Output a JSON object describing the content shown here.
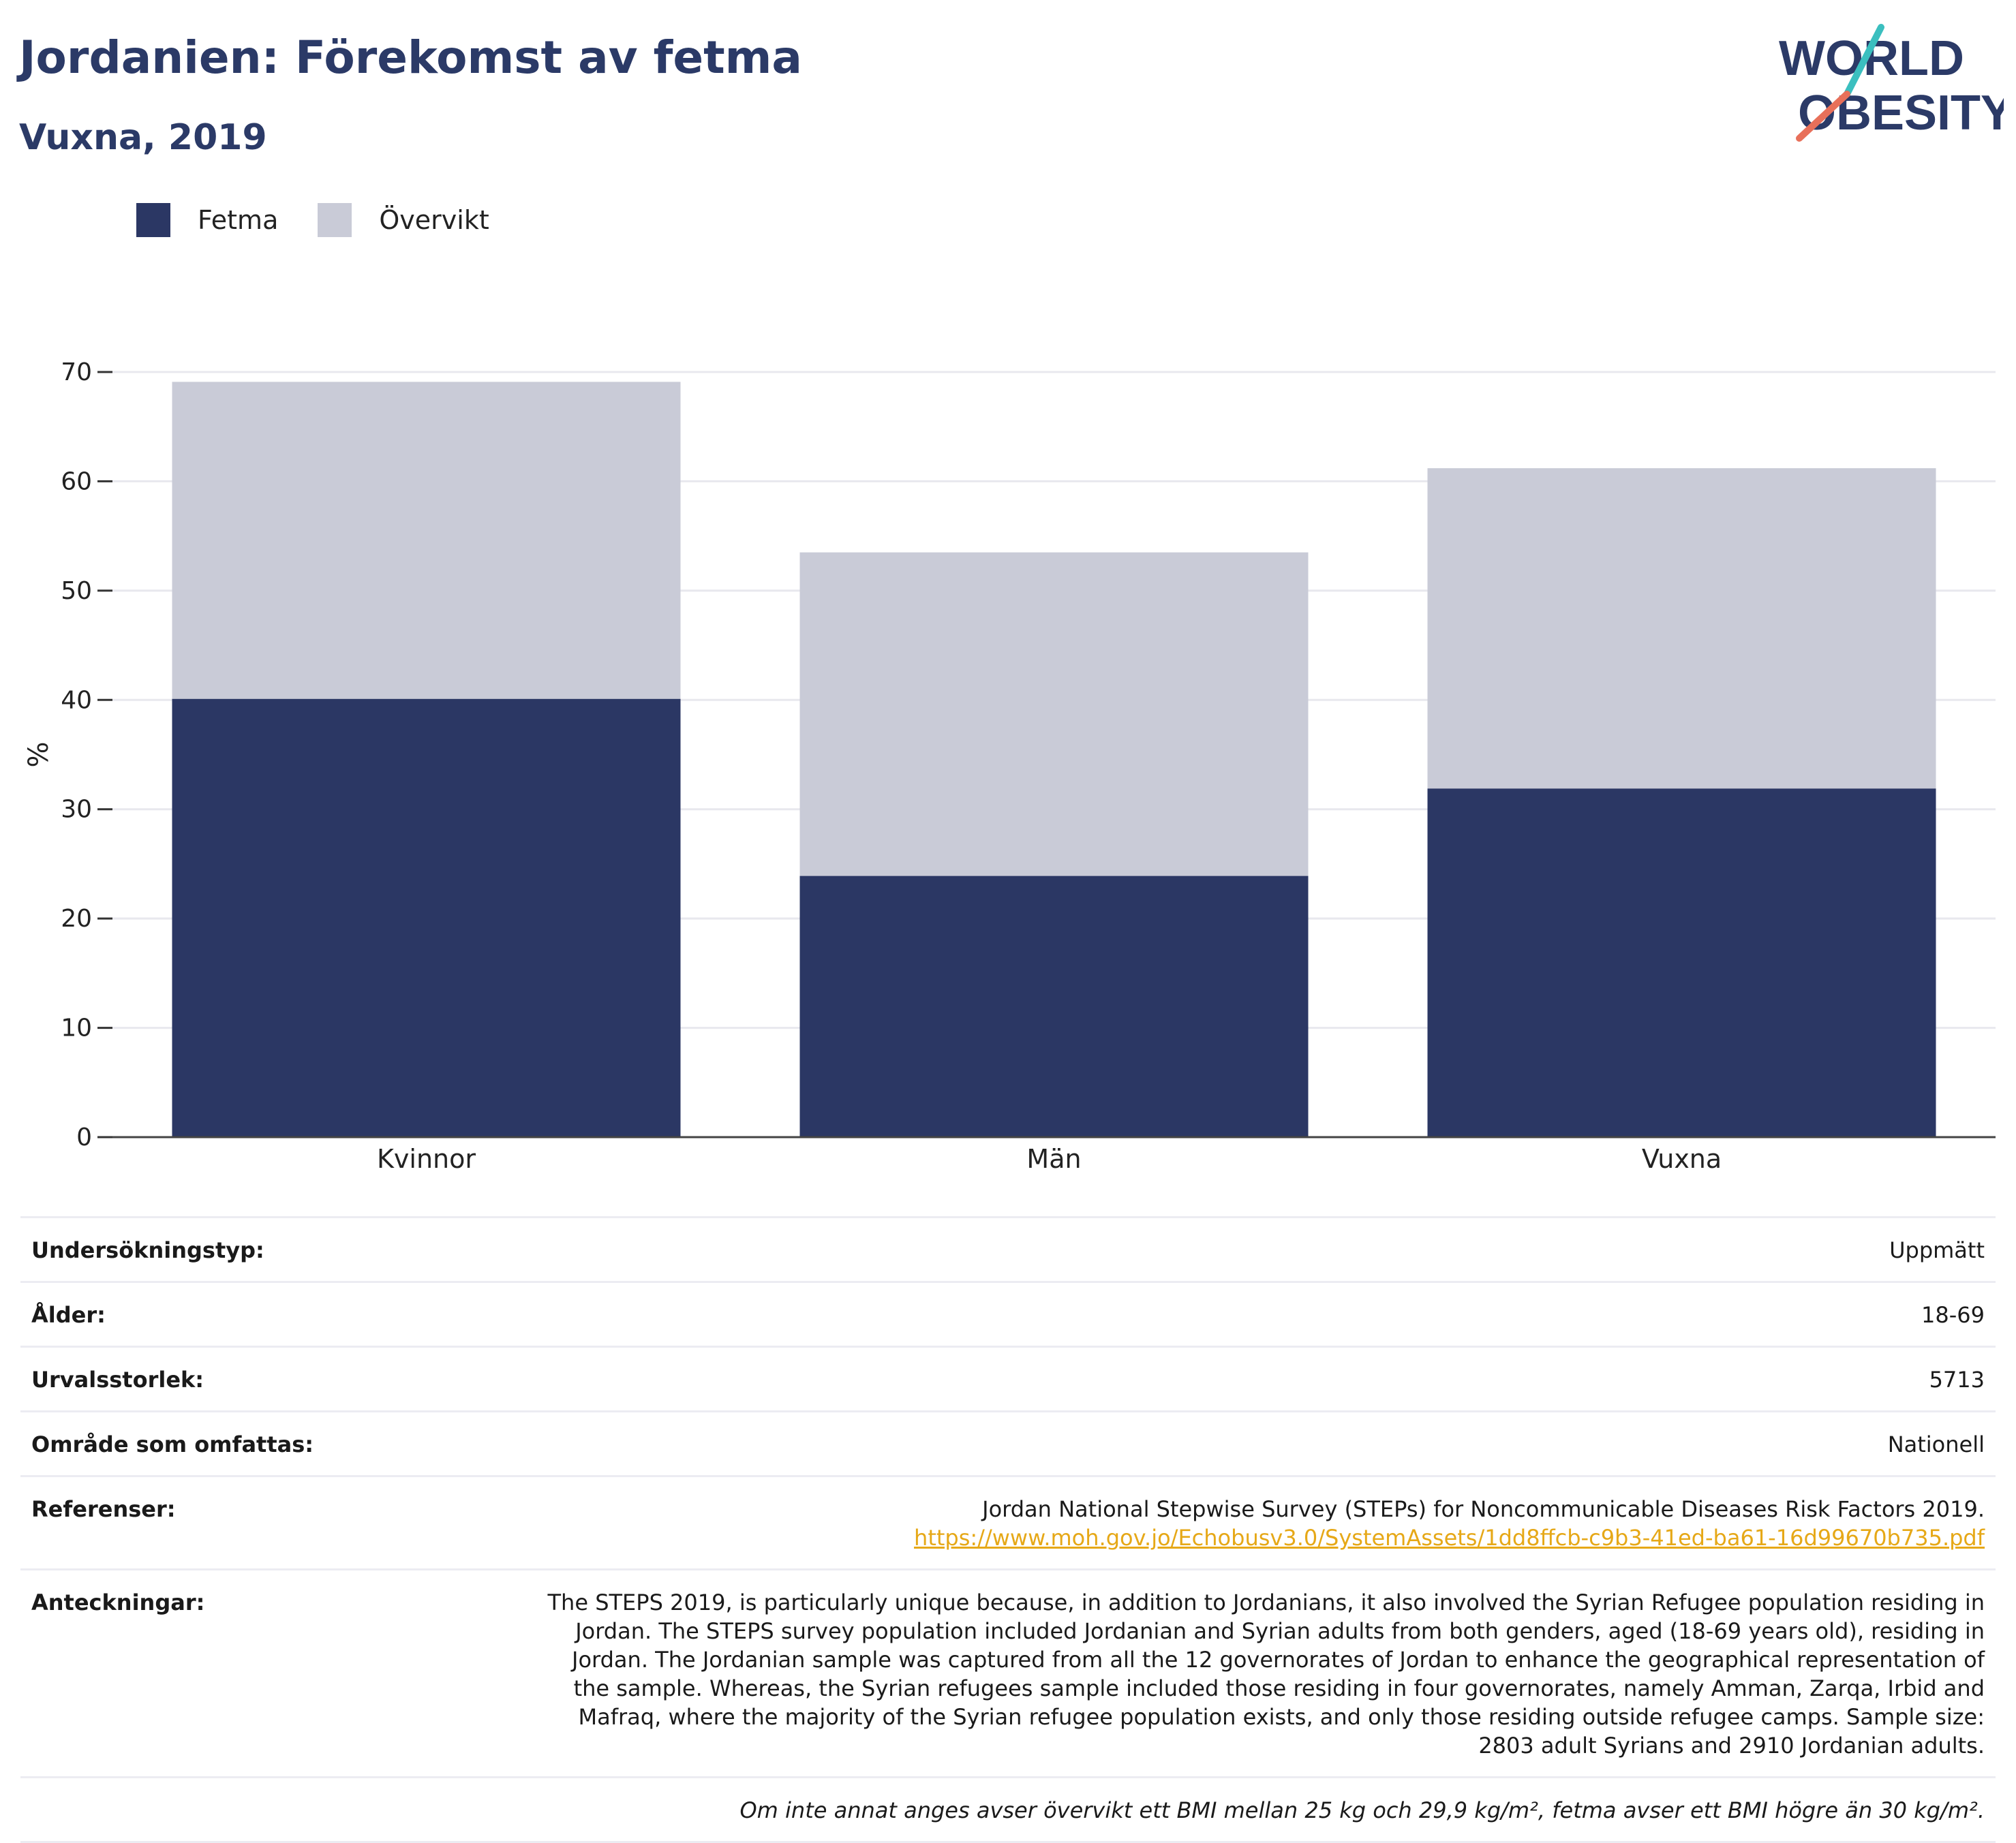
{
  "header": {
    "title": "Jordanien: Förekomst av fetma",
    "subtitle": "Vuxna, 2019"
  },
  "logo": {
    "line1": "WORLD",
    "line2": "OBESITY"
  },
  "legend": [
    {
      "label": "Fetma",
      "color": "#2b3764"
    },
    {
      "label": "Övervikt",
      "color": "#c9cbd7"
    }
  ],
  "colors": {
    "obesity": "#2b3764",
    "overweight": "#c9cbd7",
    "link": "#e6a817",
    "title": "#2b3a67"
  },
  "chart_data": {
    "type": "bar",
    "stacked": true,
    "categories": [
      "Kvinnor",
      "Män",
      "Vuxna"
    ],
    "series": [
      {
        "name": "Fetma",
        "values": [
          40.1,
          23.9,
          31.9
        ]
      },
      {
        "name": "Övervikt",
        "values": [
          29.0,
          29.6,
          29.3
        ]
      }
    ],
    "ylabel": "%",
    "ylim": [
      0,
      70
    ],
    "yticks": [
      0,
      10,
      20,
      30,
      40,
      50,
      60,
      70
    ],
    "grid": true,
    "legend_position": "top-left"
  },
  "info": {
    "survey_type_label": "Undersökningstyp:",
    "survey_type_value": "Uppmätt",
    "age_label": "Ålder:",
    "age_value": "18-69",
    "sample_label": "Urvalsstorlek:",
    "sample_value": "5713",
    "area_label": "Område som omfattas:",
    "area_value": "Nationell",
    "references_label": "Referenser:",
    "references_text": "Jordan National Stepwise Survey (STEPs) for Noncommunicable Diseases Risk Factors 2019.",
    "references_url": "https://www.moh.gov.jo/Echobusv3.0/SystemAssets/1dd8ffcb-c9b3-41ed-ba61-16d99670b735.pdf",
    "notes_label": "Anteckningar:",
    "notes_text": "The STEPS 2019, is particularly unique because, in addition to Jordanians, it also involved the Syrian Refugee population residing in Jordan. The STEPS survey population included Jordanian and Syrian adults from both genders, aged (18-69 years old), residing in Jordan. The Jordanian sample was captured from all the 12 governorates of Jordan to enhance the geographical representation of the sample. Whereas, the Syrian refugees sample included those residing in four governorates, namely Amman, Zarqa, Irbid and Mafraq, where the majority of the Syrian refugee population exists, and only those residing outside refugee camps. Sample size: 2803 adult Syrians and 2910 Jordanian adults.",
    "footnote": "Om inte annat anges avser övervikt ett BMI mellan 25 kg och 29,9 kg/m², fetma avser ett BMI högre än 30 kg/m²."
  }
}
